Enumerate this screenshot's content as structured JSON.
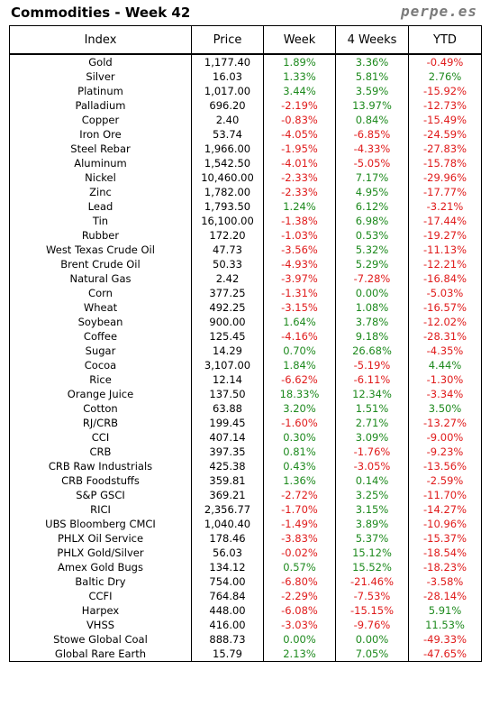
{
  "header": {
    "title": "Commodities - Week 42",
    "brand": "perpe.es"
  },
  "columns": [
    "Index",
    "Price",
    "Week",
    "4 Weeks",
    "YTD"
  ],
  "rows": [
    {
      "index": "Gold",
      "price": "1,177.40",
      "week": "1.89%",
      "four_weeks": "3.36%",
      "ytd": "-0.49%"
    },
    {
      "index": "Silver",
      "price": "16.03",
      "week": "1.33%",
      "four_weeks": "5.81%",
      "ytd": "2.76%"
    },
    {
      "index": "Platinum",
      "price": "1,017.00",
      "week": "3.44%",
      "four_weeks": "3.59%",
      "ytd": "-15.92%"
    },
    {
      "index": "Palladium",
      "price": "696.20",
      "week": "-2.19%",
      "four_weeks": "13.97%",
      "ytd": "-12.73%"
    },
    {
      "index": "Copper",
      "price": "2.40",
      "week": "-0.83%",
      "four_weeks": "0.84%",
      "ytd": "-15.49%"
    },
    {
      "index": "Iron Ore",
      "price": "53.74",
      "week": "-4.05%",
      "four_weeks": "-6.85%",
      "ytd": "-24.59%"
    },
    {
      "index": "Steel Rebar",
      "price": "1,966.00",
      "week": "-1.95%",
      "four_weeks": "-4.33%",
      "ytd": "-27.83%"
    },
    {
      "index": "Aluminum",
      "price": "1,542.50",
      "week": "-4.01%",
      "four_weeks": "-5.05%",
      "ytd": "-15.78%"
    },
    {
      "index": "Nickel",
      "price": "10,460.00",
      "week": "-2.33%",
      "four_weeks": "7.17%",
      "ytd": "-29.96%"
    },
    {
      "index": "Zinc",
      "price": "1,782.00",
      "week": "-2.33%",
      "four_weeks": "4.95%",
      "ytd": "-17.77%"
    },
    {
      "index": "Lead",
      "price": "1,793.50",
      "week": "1.24%",
      "four_weeks": "6.12%",
      "ytd": "-3.21%"
    },
    {
      "index": "Tin",
      "price": "16,100.00",
      "week": "-1.38%",
      "four_weeks": "6.98%",
      "ytd": "-17.44%"
    },
    {
      "index": "Rubber",
      "price": "172.20",
      "week": "-1.03%",
      "four_weeks": "0.53%",
      "ytd": "-19.27%"
    },
    {
      "index": "West Texas Crude Oil",
      "price": "47.73",
      "week": "-3.56%",
      "four_weeks": "5.32%",
      "ytd": "-11.13%"
    },
    {
      "index": "Brent Crude Oil",
      "price": "50.33",
      "week": "-4.93%",
      "four_weeks": "5.29%",
      "ytd": "-12.21%"
    },
    {
      "index": "Natural Gas",
      "price": "2.42",
      "week": "-3.97%",
      "four_weeks": "-7.28%",
      "ytd": "-16.84%"
    },
    {
      "index": "Corn",
      "price": "377.25",
      "week": "-1.31%",
      "four_weeks": "0.00%",
      "ytd": "-5.03%"
    },
    {
      "index": "Wheat",
      "price": "492.25",
      "week": "-3.15%",
      "four_weeks": "1.08%",
      "ytd": "-16.57%"
    },
    {
      "index": "Soybean",
      "price": "900.00",
      "week": "1.64%",
      "four_weeks": "3.78%",
      "ytd": "-12.02%"
    },
    {
      "index": "Coffee",
      "price": "125.45",
      "week": "-4.16%",
      "four_weeks": "9.18%",
      "ytd": "-28.31%"
    },
    {
      "index": "Sugar",
      "price": "14.29",
      "week": "0.70%",
      "four_weeks": "26.68%",
      "ytd": "-4.35%"
    },
    {
      "index": "Cocoa",
      "price": "3,107.00",
      "week": "1.84%",
      "four_weeks": "-5.19%",
      "ytd": "4.44%"
    },
    {
      "index": "Rice",
      "price": "12.14",
      "week": "-6.62%",
      "four_weeks": "-6.11%",
      "ytd": "-1.30%"
    },
    {
      "index": "Orange Juice",
      "price": "137.50",
      "week": "18.33%",
      "four_weeks": "12.34%",
      "ytd": "-3.34%"
    },
    {
      "index": "Cotton",
      "price": "63.88",
      "week": "3.20%",
      "four_weeks": "1.51%",
      "ytd": "3.50%"
    },
    {
      "index": "RJ/CRB",
      "price": "199.45",
      "week": "-1.60%",
      "four_weeks": "2.71%",
      "ytd": "-13.27%"
    },
    {
      "index": "CCI",
      "price": "407.14",
      "week": "0.30%",
      "four_weeks": "3.09%",
      "ytd": "-9.00%"
    },
    {
      "index": "CRB",
      "price": "397.35",
      "week": "0.81%",
      "four_weeks": "-1.76%",
      "ytd": "-9.23%"
    },
    {
      "index": "CRB Raw Industrials",
      "price": "425.38",
      "week": "0.43%",
      "four_weeks": "-3.05%",
      "ytd": "-13.56%"
    },
    {
      "index": "CRB Foodstuffs",
      "price": "359.81",
      "week": "1.36%",
      "four_weeks": "0.14%",
      "ytd": "-2.59%"
    },
    {
      "index": "S&P GSCI",
      "price": "369.21",
      "week": "-2.72%",
      "four_weeks": "3.25%",
      "ytd": "-11.70%"
    },
    {
      "index": "RICI",
      "price": "2,356.77",
      "week": "-1.70%",
      "four_weeks": "3.15%",
      "ytd": "-14.27%"
    },
    {
      "index": "UBS Bloomberg CMCI",
      "price": "1,040.40",
      "week": "-1.49%",
      "four_weeks": "3.89%",
      "ytd": "-10.96%"
    },
    {
      "index": "PHLX Oil Service",
      "price": "178.46",
      "week": "-3.83%",
      "four_weeks": "5.37%",
      "ytd": "-15.37%"
    },
    {
      "index": "PHLX Gold/Silver",
      "price": "56.03",
      "week": "-0.02%",
      "four_weeks": "15.12%",
      "ytd": "-18.54%"
    },
    {
      "index": "Amex Gold Bugs",
      "price": "134.12",
      "week": "0.57%",
      "four_weeks": "15.52%",
      "ytd": "-18.23%"
    },
    {
      "index": "Baltic Dry",
      "price": "754.00",
      "week": "-6.80%",
      "four_weeks": "-21.46%",
      "ytd": "-3.58%"
    },
    {
      "index": "CCFI",
      "price": "764.84",
      "week": "-2.29%",
      "four_weeks": "-7.53%",
      "ytd": "-28.14%"
    },
    {
      "index": "Harpex",
      "price": "448.00",
      "week": "-6.08%",
      "four_weeks": "-15.15%",
      "ytd": "5.91%"
    },
    {
      "index": "VHSS",
      "price": "416.00",
      "week": "-3.03%",
      "four_weeks": "-9.76%",
      "ytd": "11.53%"
    },
    {
      "index": "Stowe Global Coal",
      "price": "888.73",
      "week": "0.00%",
      "four_weeks": "0.00%",
      "ytd": "-49.33%"
    },
    {
      "index": "Global Rare Earth",
      "price": "15.79",
      "week": "2.13%",
      "four_weeks": "7.05%",
      "ytd": "-47.65%"
    }
  ]
}
